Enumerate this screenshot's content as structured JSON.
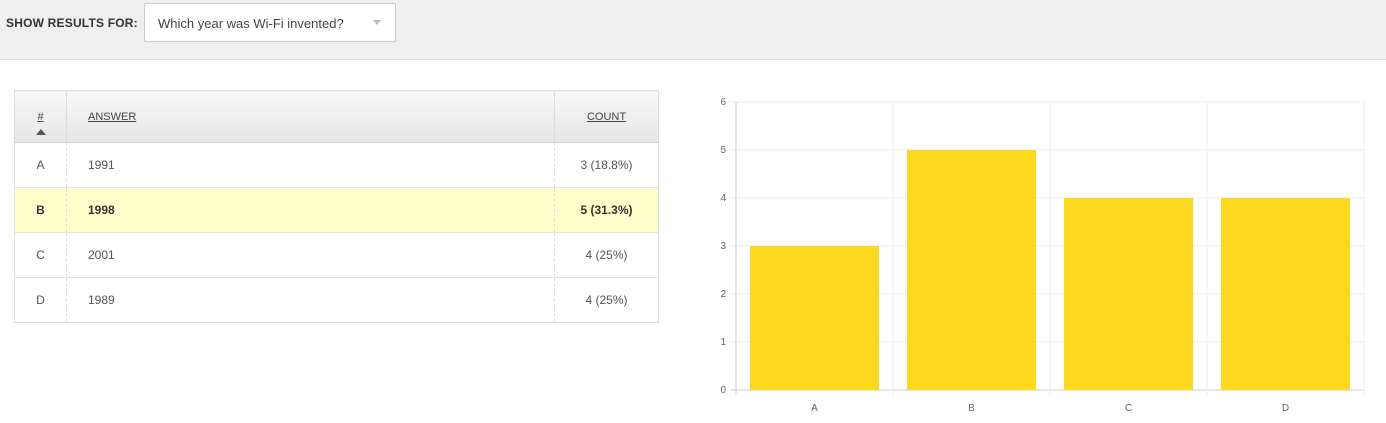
{
  "filter": {
    "label": "SHOW RESULTS FOR:",
    "selected": "Which year was Wi-Fi invented?"
  },
  "table": {
    "headers": {
      "num": "#",
      "answer": "ANSWER",
      "count": "COUNT"
    },
    "rows": [
      {
        "letter": "A",
        "answer": "1991",
        "count": "3 (18.8%)",
        "highlight": false
      },
      {
        "letter": "B",
        "answer": "1998",
        "count": "5 (31.3%)",
        "highlight": true
      },
      {
        "letter": "C",
        "answer": "2001",
        "count": "4 (25%)",
        "highlight": false
      },
      {
        "letter": "D",
        "answer": "1989",
        "count": "4 (25%)",
        "highlight": false
      }
    ]
  },
  "chart_data": {
    "type": "bar",
    "categories": [
      "A",
      "B",
      "C",
      "D"
    ],
    "values": [
      3,
      5,
      4,
      4
    ],
    "title": "",
    "xlabel": "",
    "ylabel": "",
    "ylim": [
      0,
      6
    ],
    "yticks": [
      "0",
      "1",
      "2",
      "3",
      "4",
      "5",
      "6"
    ],
    "grid": true,
    "bar_color": "#fcd91e"
  },
  "colors": {
    "highlight_row": "#ffffcc",
    "bar": "#fcd91e"
  }
}
